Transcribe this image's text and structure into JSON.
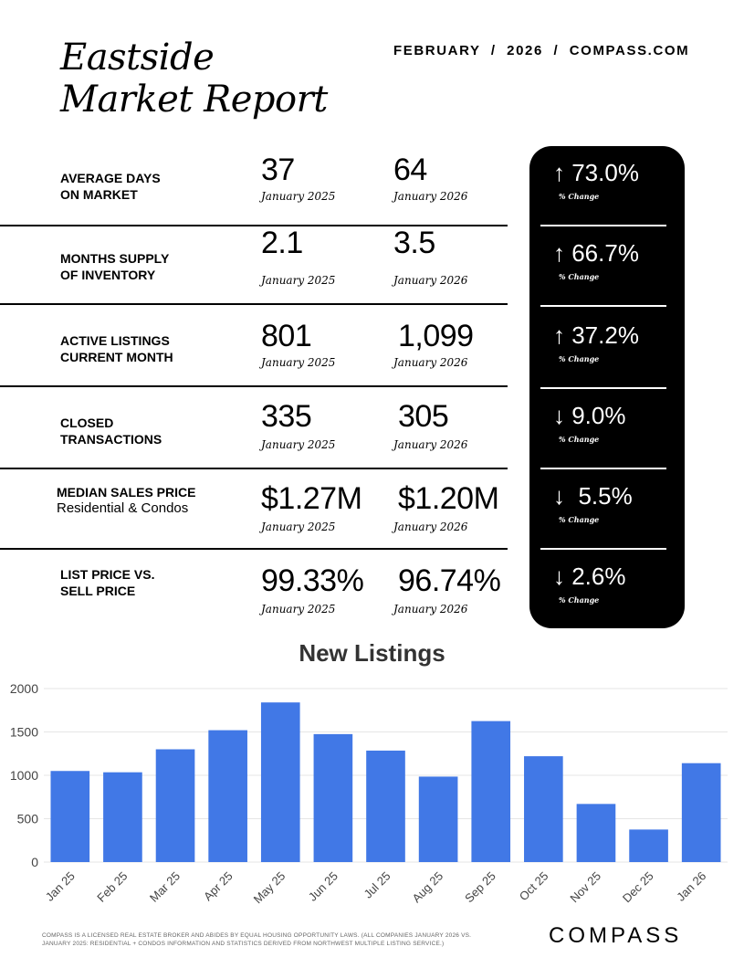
{
  "header": {
    "title_line1": "Eastside",
    "title_line2": "Market Report",
    "dateline": "FEBRUARY  /  2026  /  COMPASS.COM"
  },
  "metrics": [
    {
      "label_line1": "AVERAGE DAYS",
      "label_line2": "ON MARKET",
      "value_2025": "37",
      "period_2025": "January 2025",
      "value_2026": "64",
      "period_2026": "January 2026",
      "change": "↑ 73.0%",
      "change_label": "% Change"
    },
    {
      "label_line1": "MONTHS SUPPLY",
      "label_line2": "OF INVENTORY",
      "value_2025": "2.1",
      "period_2025": "January 2025",
      "value_2026": "3.5",
      "period_2026": "January 2026",
      "change": "↑ 66.7%",
      "change_label": "% Change"
    },
    {
      "label_line1": "ACTIVE LISTINGS",
      "label_line2": "CURRENT MONTH",
      "value_2025": "801",
      "period_2025": "January 2025",
      "value_2026": "1,099",
      "period_2026": "January 2026",
      "change": "↑ 37.2%",
      "change_label": "% Change"
    },
    {
      "label_line1": "CLOSED",
      "label_line2": "TRANSACTIONS",
      "value_2025": "335",
      "period_2025": "January 2025",
      "value_2026": "305",
      "period_2026": "January 2026",
      "change": "↓ 9.0%",
      "change_label": "% Change"
    },
    {
      "label_line1": "MEDIAN SALES PRICE",
      "label_line2": "Residential & Condos",
      "value_2025": "$1.27M",
      "period_2025": "January 2025",
      "value_2026": "$1.20M",
      "period_2026": "January 2026",
      "change": "↓  5.5%",
      "change_label": "% Change"
    },
    {
      "label_line1": "LIST PRICE VS.",
      "label_line2": "SELL PRICE",
      "value_2025": "99.33%",
      "period_2025": "January 2025",
      "value_2026": "96.74%",
      "period_2026": "January 2026",
      "change": "↓ 2.6%",
      "change_label": "% Change"
    }
  ],
  "chart_data": {
    "type": "bar",
    "title": "New Listings",
    "categories": [
      "Jan 25",
      "Feb 25",
      "Mar 25",
      "Apr 25",
      "May 25",
      "Jun 25",
      "Jul 25",
      "Aug 25",
      "Sep 25",
      "Oct 25",
      "Nov 25",
      "Dec 25",
      "Jan 26"
    ],
    "values": [
      1050,
      1035,
      1300,
      1520,
      1840,
      1475,
      1285,
      985,
      1625,
      1220,
      670,
      375,
      1140
    ],
    "ylim": [
      0,
      2000
    ],
    "yticks": [
      0,
      500,
      1000,
      1500,
      2000
    ],
    "xlabel": "",
    "ylabel": "",
    "grid": true,
    "bar_color": "#4178e6"
  },
  "footer": {
    "disclaimer": "COMPASS IS A LICENSED REAL ESTATE BROKER AND ABIDES BY EQUAL HOUSING OPPORTUNITY LAWS. (ALL COMPANIES JANUARY 2026 VS. JANUARY 2025: RESIDENTIAL + CONDOS INFORMATION AND STATISTICS DERIVED FROM NORTHWEST MULTIPLE LISTING SERVICE.)",
    "logo_text": "COMPASS"
  }
}
